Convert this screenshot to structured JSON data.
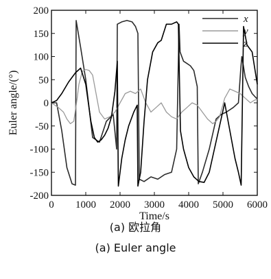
{
  "chart_data": {
    "type": "line",
    "xlabel": "Time/s",
    "ylabel": "Euler angle/(°)",
    "xlim": [
      0,
      6000
    ],
    "ylim": [
      -200,
      200
    ],
    "xticks": [
      0,
      1000,
      2000,
      3000,
      4000,
      5000,
      6000
    ],
    "yticks": [
      200,
      150,
      100,
      50,
      0,
      -50,
      -100,
      -150,
      -200
    ],
    "grid": false,
    "legend": "top-right",
    "series": [
      {
        "name": "x",
        "color": "#2b2b2b",
        "x": [
          0,
          150,
          300,
          450,
          600,
          700,
          720,
          850,
          1000,
          1200,
          1400,
          1600,
          1800,
          1900,
          1920,
          2050,
          2200,
          2350,
          2450,
          2520,
          2560,
          2700,
          2900,
          3100,
          3300,
          3500,
          3650,
          3720,
          3750,
          3850,
          3950,
          4050,
          4150,
          4250,
          4280,
          4400,
          4600,
          4800,
          4950,
          5100,
          5300,
          5450,
          5520,
          5550,
          5650,
          5750,
          5850,
          6000
        ],
        "y": [
          0,
          0,
          -60,
          -140,
          -175,
          -178,
          178,
          120,
          50,
          -75,
          -85,
          -40,
          -25,
          -100,
          170,
          175,
          178,
          175,
          165,
          150,
          -165,
          -170,
          -160,
          -165,
          -155,
          -150,
          -100,
          170,
          110,
          90,
          85,
          80,
          70,
          35,
          -175,
          -150,
          -100,
          -35,
          -25,
          -20,
          -10,
          0,
          75,
          100,
          55,
          35,
          20,
          8
        ]
      },
      {
        "name": "y",
        "color": "#9a9a9a",
        "x": [
          0,
          200,
          350,
          450,
          550,
          650,
          750,
          800,
          900,
          1000,
          1100,
          1200,
          1300,
          1400,
          1550,
          1700,
          1850,
          2000,
          2150,
          2300,
          2450,
          2600,
          2750,
          2900,
          3050,
          3200,
          3350,
          3500,
          3650,
          3800,
          3950,
          4100,
          4250,
          4400,
          4550,
          4700,
          4800,
          4900,
          5050,
          5200,
          5350,
          5500,
          5650,
          5800,
          5900,
          6000
        ],
        "y": [
          0,
          -10,
          -20,
          -35,
          -45,
          -40,
          10,
          40,
          68,
          72,
          70,
          60,
          20,
          -20,
          -35,
          -30,
          -20,
          0,
          20,
          25,
          20,
          30,
          0,
          -20,
          -10,
          0,
          -20,
          -30,
          -35,
          -20,
          -10,
          0,
          -5,
          -20,
          -35,
          -45,
          -40,
          -30,
          10,
          30,
          25,
          20,
          10,
          0,
          5,
          8
        ]
      },
      {
        "name": "z",
        "color": "#000000",
        "x": [
          0,
          150,
          300,
          500,
          700,
          850,
          1000,
          1150,
          1250,
          1350,
          1450,
          1550,
          1650,
          1750,
          1850,
          1920,
          1950,
          2050,
          2150,
          2250,
          2400,
          2500,
          2520,
          2600,
          2700,
          2800,
          2950,
          3100,
          3200,
          3350,
          3500,
          3650,
          3700,
          3760,
          3850,
          4000,
          4150,
          4300,
          4450,
          4600,
          4750,
          4900,
          5050,
          5200,
          5350,
          5450,
          5530,
          5600,
          5700,
          5850,
          6000
        ],
        "y": [
          0,
          5,
          20,
          45,
          65,
          75,
          40,
          -40,
          -75,
          -85,
          -80,
          -70,
          -55,
          -30,
          25,
          90,
          -180,
          -120,
          -80,
          -50,
          -20,
          -5,
          -180,
          -150,
          -40,
          50,
          110,
          130,
          135,
          170,
          170,
          175,
          170,
          -60,
          -100,
          -140,
          -160,
          -170,
          -172,
          -150,
          -100,
          -50,
          0,
          -60,
          -120,
          -150,
          -178,
          165,
          125,
          110,
          40
        ]
      }
    ]
  }
}
